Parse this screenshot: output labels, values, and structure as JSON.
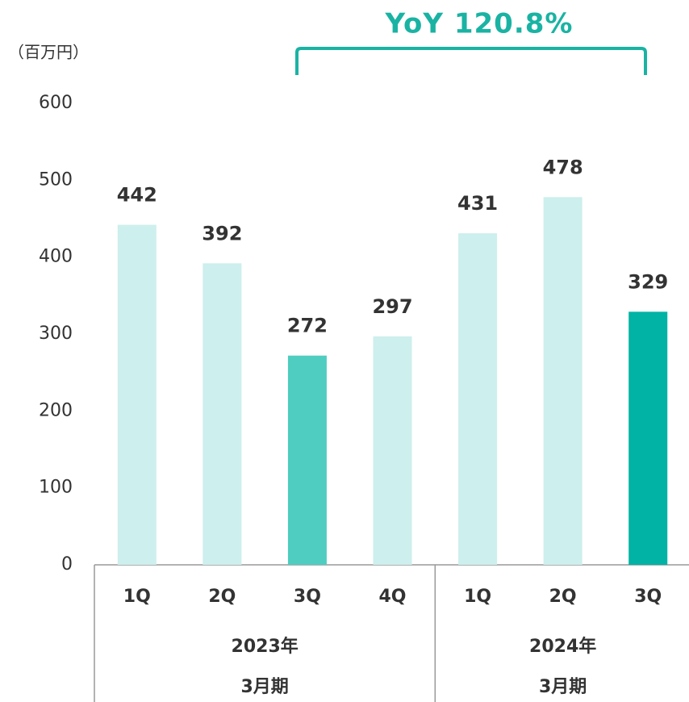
{
  "chart_data": {
    "type": "bar",
    "unit_label": "（百万円）",
    "annotation": "YoY 120.8%",
    "annotation_color": "#1ab3a3",
    "groups": [
      {
        "label": [
          "2023年",
          "3月期"
        ],
        "categories": [
          "1Q",
          "2Q",
          "3Q",
          "4Q"
        ],
        "values": [
          442,
          392,
          272,
          297
        ],
        "colors": [
          "#cdefed",
          "#cdefed",
          "#4ecdc0",
          "#cdefed"
        ]
      },
      {
        "label": [
          "2024年",
          "3月期"
        ],
        "categories": [
          "1Q",
          "2Q",
          "3Q"
        ],
        "values": [
          431,
          478,
          329
        ],
        "colors": [
          "#cdefed",
          "#cdefed",
          "#00b3a4"
        ]
      }
    ],
    "ylim": [
      0,
      600
    ],
    "yticks": [
      0,
      100,
      200,
      300,
      400,
      500,
      600
    ],
    "grid": false
  }
}
